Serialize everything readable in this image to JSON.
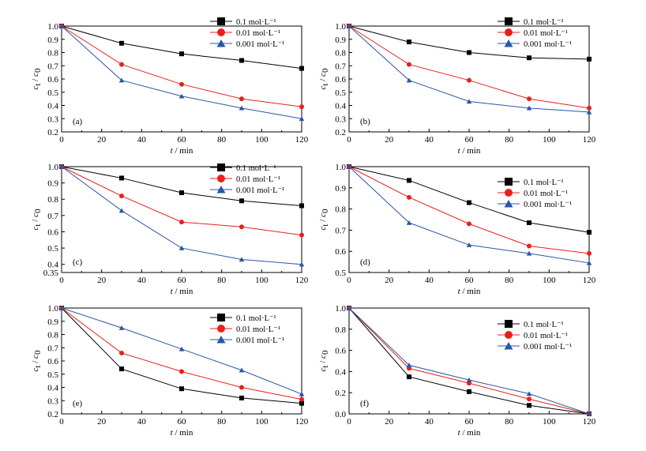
{
  "legend_suffix": "mol·L⁻¹",
  "chart_data": [
    {
      "type": "line",
      "panel_label": "(a)",
      "xlabel": "t / min",
      "ylabel": "c_t / c_0",
      "x": [
        0,
        30,
        60,
        90,
        120
      ],
      "xlim": [
        0,
        120
      ],
      "xticks": [
        0,
        20,
        40,
        60,
        80,
        100,
        120
      ],
      "ylim": [
        0.2,
        1.0
      ],
      "yticks": [
        0.2,
        0.3,
        0.4,
        0.5,
        0.6,
        0.7,
        0.8,
        0.9,
        1.0
      ],
      "legend": "top-right",
      "grid": false,
      "series": [
        {
          "name": "0.1 mol·L⁻¹",
          "color": "#000000",
          "marker": "square",
          "values": [
            1.0,
            0.87,
            0.79,
            0.74,
            0.68
          ]
        },
        {
          "name": "0.01 mol·L⁻¹",
          "color": "#e8201c",
          "marker": "circle",
          "values": [
            1.0,
            0.71,
            0.56,
            0.45,
            0.39
          ]
        },
        {
          "name": "0.001 mol·L⁻¹",
          "color": "#2957a4",
          "marker": "triangle",
          "values": [
            1.0,
            0.59,
            0.47,
            0.38,
            0.3
          ]
        }
      ]
    },
    {
      "type": "line",
      "panel_label": "(b)",
      "xlabel": "t / min",
      "ylabel": "c_t / c_0",
      "x": [
        0,
        30,
        60,
        90,
        120
      ],
      "xlim": [
        0,
        120
      ],
      "xticks": [
        0,
        20,
        40,
        60,
        80,
        100,
        120
      ],
      "ylim": [
        0.2,
        1.0
      ],
      "yticks": [
        0.2,
        0.3,
        0.4,
        0.5,
        0.6,
        0.7,
        0.8,
        0.9,
        1.0
      ],
      "legend": "top-right",
      "grid": false,
      "series": [
        {
          "name": "0.1 mol·L⁻¹",
          "color": "#000000",
          "marker": "square",
          "values": [
            1.0,
            0.88,
            0.8,
            0.76,
            0.75
          ]
        },
        {
          "name": "0.01 mol·L⁻¹",
          "color": "#e8201c",
          "marker": "circle",
          "values": [
            1.0,
            0.71,
            0.59,
            0.45,
            0.38
          ]
        },
        {
          "name": "0.001 mol·L⁻¹",
          "color": "#2957a4",
          "marker": "triangle",
          "values": [
            1.0,
            0.59,
            0.43,
            0.38,
            0.35
          ]
        }
      ]
    },
    {
      "type": "line",
      "panel_label": "(c)",
      "xlabel": "t / min",
      "ylabel": "c_t / c_0",
      "x": [
        0,
        30,
        60,
        90,
        120
      ],
      "xlim": [
        0,
        120
      ],
      "xticks": [
        0,
        20,
        40,
        60,
        80,
        100,
        120
      ],
      "ylim": [
        0.35,
        1.0
      ],
      "yticks": [
        0.35,
        0.4,
        0.5,
        0.6,
        0.7,
        0.8,
        0.9,
        1.0
      ],
      "legend": "top-right",
      "grid": false,
      "series": [
        {
          "name": "0.1 mol·L⁻¹",
          "color": "#000000",
          "marker": "square",
          "values": [
            1.0,
            0.93,
            0.84,
            0.79,
            0.76
          ]
        },
        {
          "name": "0.01 mol·L⁻¹",
          "color": "#e8201c",
          "marker": "circle",
          "values": [
            1.0,
            0.82,
            0.66,
            0.63,
            0.58
          ]
        },
        {
          "name": "0.001 mol·L⁻¹",
          "color": "#2957a4",
          "marker": "triangle",
          "values": [
            1.0,
            0.73,
            0.5,
            0.43,
            0.4
          ]
        }
      ]
    },
    {
      "type": "line",
      "panel_label": "(d)",
      "xlabel": "t / min",
      "ylabel": "c_t / c_0",
      "x": [
        0,
        30,
        60,
        90,
        120
      ],
      "xlim": [
        0,
        120
      ],
      "xticks": [
        0,
        20,
        40,
        60,
        80,
        100,
        120
      ],
      "ylim": [
        0.5,
        1.0
      ],
      "yticks": [
        0.5,
        0.6,
        0.7,
        0.8,
        0.9,
        1.0
      ],
      "legend": "right",
      "grid": false,
      "series": [
        {
          "name": "0.1 mol·L⁻¹",
          "color": "#000000",
          "marker": "square",
          "values": [
            1.0,
            0.935,
            0.83,
            0.735,
            0.69
          ]
        },
        {
          "name": "0.01 mol·L⁻¹",
          "color": "#e8201c",
          "marker": "circle",
          "values": [
            1.0,
            0.855,
            0.73,
            0.625,
            0.59
          ]
        },
        {
          "name": "0.001 mol·L⁻¹",
          "color": "#2957a4",
          "marker": "triangle",
          "values": [
            1.0,
            0.735,
            0.63,
            0.59,
            0.545
          ]
        }
      ]
    },
    {
      "type": "line",
      "panel_label": "(e)",
      "xlabel": "t / min",
      "ylabel": "c_t / c_0",
      "x": [
        0,
        30,
        60,
        90,
        120
      ],
      "xlim": [
        0,
        120
      ],
      "xticks": [
        0,
        20,
        40,
        60,
        80,
        100,
        120
      ],
      "ylim": [
        0.2,
        1.0
      ],
      "yticks": [
        0.2,
        0.3,
        0.4,
        0.5,
        0.6,
        0.7,
        0.8,
        0.9,
        1.0
      ],
      "legend": "top-right",
      "grid": false,
      "series": [
        {
          "name": "0.1 mol·L⁻¹",
          "color": "#000000",
          "marker": "square",
          "values": [
            1.0,
            0.54,
            0.39,
            0.32,
            0.28
          ]
        },
        {
          "name": "0.01 mol·L⁻¹",
          "color": "#e8201c",
          "marker": "circle",
          "values": [
            1.0,
            0.66,
            0.52,
            0.4,
            0.31
          ]
        },
        {
          "name": "0.001 mol·L⁻¹",
          "color": "#2957a4",
          "marker": "triangle",
          "values": [
            1.0,
            0.85,
            0.69,
            0.53,
            0.35
          ]
        }
      ]
    },
    {
      "type": "line",
      "panel_label": "(f)",
      "xlabel": "t / min",
      "ylabel": "c_t / c_0",
      "x": [
        0,
        30,
        60,
        90,
        120
      ],
      "xlim": [
        0,
        120
      ],
      "xticks": [
        0,
        20,
        40,
        60,
        80,
        100,
        120
      ],
      "ylim": [
        0.0,
        1.0
      ],
      "yticks": [
        0.0,
        0.2,
        0.4,
        0.6,
        0.8,
        1.0
      ],
      "legend": "right",
      "grid": false,
      "series": [
        {
          "name": "0.1 mol·L⁻¹",
          "color": "#000000",
          "marker": "square",
          "values": [
            1.0,
            0.35,
            0.21,
            0.08,
            0.0
          ]
        },
        {
          "name": "0.01 mol·L⁻¹",
          "color": "#e8201c",
          "marker": "circle",
          "values": [
            1.0,
            0.43,
            0.29,
            0.14,
            0.0
          ]
        },
        {
          "name": "0.001 mol·L⁻¹",
          "color": "#2957a4",
          "marker": "triangle",
          "values": [
            1.0,
            0.46,
            0.32,
            0.19,
            0.0
          ]
        }
      ]
    }
  ]
}
